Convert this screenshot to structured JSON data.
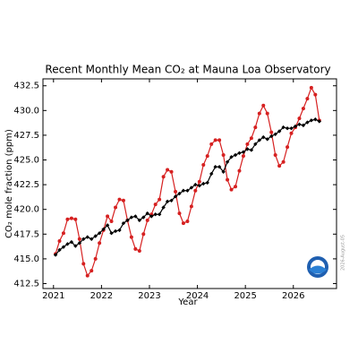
{
  "chart_data": {
    "type": "line",
    "title": "Recent Monthly Mean CO₂ at Mauna Loa Observatory",
    "x_label": "Year",
    "y_label": "CO₂ mole fraction (ppm)",
    "date_stamp": "2026-August-05",
    "xlim": [
      2020.78,
      2026.9
    ],
    "ylim": [
      412.0,
      433.2
    ],
    "xticks": [
      2021,
      2022,
      2023,
      2024,
      2025,
      2026
    ],
    "yticks": [
      412.5,
      {
        "value": 415,
        "label": "415.0"
      },
      417.5,
      {
        "value": 420,
        "label": "420.0"
      },
      422.5,
      {
        "value": 425,
        "label": "425.0"
      },
      427.5,
      {
        "value": 430,
        "label": "430.0"
      },
      432.5
    ],
    "x": [
      2021.042,
      2021.125,
      2021.208,
      2021.292,
      2021.375,
      2021.458,
      2021.542,
      2021.625,
      2021.708,
      2021.792,
      2021.875,
      2021.958,
      2022.042,
      2022.125,
      2022.208,
      2022.292,
      2022.375,
      2022.458,
      2022.542,
      2022.625,
      2022.708,
      2022.792,
      2022.875,
      2022.958,
      2023.042,
      2023.125,
      2023.208,
      2023.292,
      2023.375,
      2023.458,
      2023.542,
      2023.625,
      2023.708,
      2023.792,
      2023.875,
      2023.958,
      2024.042,
      2024.125,
      2024.208,
      2024.292,
      2024.375,
      2024.458,
      2024.542,
      2024.625,
      2024.708,
      2024.792,
      2024.875,
      2024.958,
      2025.042,
      2025.125,
      2025.208,
      2025.292,
      2025.375,
      2025.458,
      2025.542,
      2025.625,
      2025.708,
      2025.792,
      2025.875,
      2025.958,
      2026.042,
      2026.125,
      2026.208,
      2026.292,
      2026.375,
      2026.458,
      2026.542
    ],
    "series": [
      {
        "color": "#d62020",
        "marker": "circle",
        "values": [
          415.5,
          416.8,
          417.6,
          419.0,
          419.1,
          419.0,
          417.0,
          414.5,
          413.3,
          413.8,
          415.0,
          416.6,
          417.9,
          419.3,
          418.8,
          420.2,
          421.0,
          420.9,
          418.9,
          417.2,
          416.0,
          415.8,
          417.5,
          418.9,
          419.5,
          420.5,
          421.0,
          423.3,
          424.0,
          423.8,
          421.8,
          419.6,
          418.6,
          418.8,
          420.3,
          421.9,
          422.8,
          424.5,
          425.4,
          426.6,
          427.0,
          427.0,
          425.5,
          423.0,
          422.0,
          422.3,
          423.9,
          425.4,
          426.6,
          427.2,
          428.3,
          429.7,
          430.5,
          429.7,
          427.8,
          425.5,
          424.4,
          424.8,
          426.3,
          427.7,
          428.3,
          429.2,
          430.2,
          431.2,
          432.3,
          431.6,
          429.0
        ]
      },
      {
        "color": "#000000",
        "marker": "diamond",
        "values": [
          415.4,
          415.9,
          416.2,
          416.5,
          416.7,
          416.3,
          416.6,
          417.0,
          417.2,
          417.0,
          417.3,
          417.6,
          418.0,
          418.4,
          417.6,
          417.8,
          417.9,
          418.6,
          418.9,
          419.2,
          419.3,
          418.9,
          419.2,
          419.6,
          419.3,
          419.5,
          419.5,
          420.2,
          420.8,
          420.9,
          421.3,
          421.6,
          421.9,
          421.9,
          422.2,
          422.5,
          422.4,
          422.6,
          422.7,
          423.6,
          424.3,
          424.3,
          423.8,
          424.8,
          425.3,
          425.5,
          425.7,
          425.8,
          426.1,
          426.0,
          426.6,
          427.0,
          427.3,
          427.1,
          427.4,
          427.6,
          427.9,
          428.3,
          428.2,
          428.2,
          428.4,
          428.6,
          428.5,
          428.8,
          429.0,
          429.1,
          428.9
        ]
      }
    ]
  }
}
